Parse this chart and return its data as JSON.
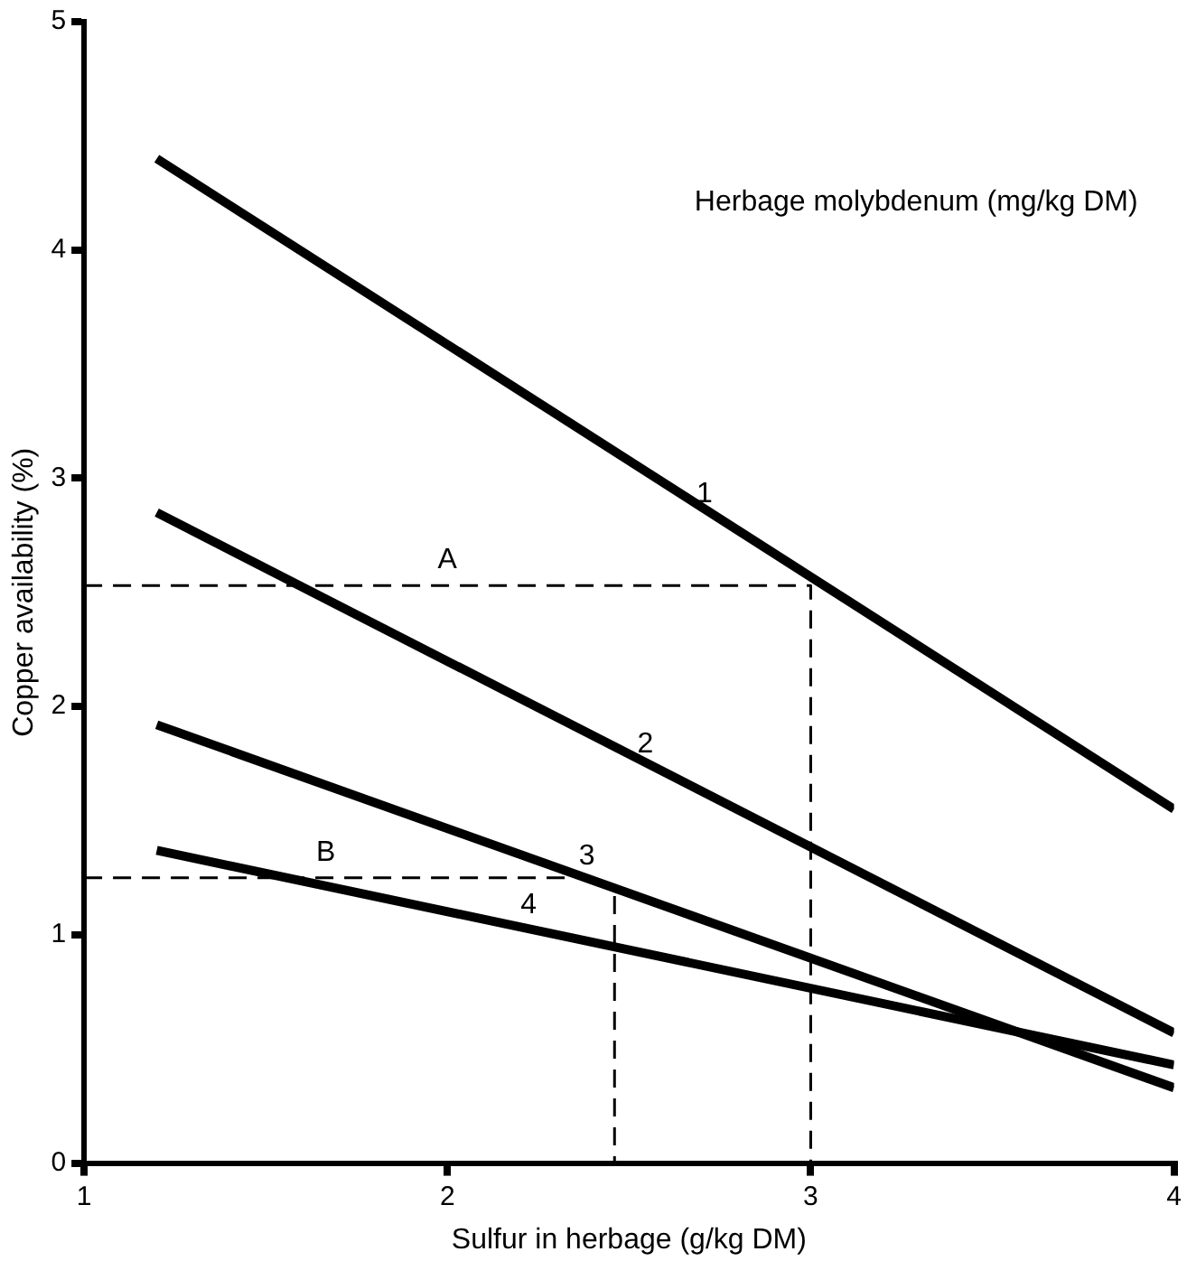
{
  "chart_data": {
    "type": "line",
    "xlabel": "Sulfur in herbage (g/kg DM)",
    "ylabel": "Copper availability (%)",
    "xlim": [
      1,
      4
    ],
    "ylim": [
      0,
      5
    ],
    "xticks": [
      1,
      2,
      3,
      4
    ],
    "yticks": [
      0,
      1,
      2,
      3,
      4,
      5
    ],
    "grid": false,
    "legend": false,
    "marker": "none",
    "line_style": "solid",
    "series": [
      {
        "name": "1",
        "color": "#000000",
        "x": [
          1.2,
          4
        ],
        "values": [
          4.4,
          1.55
        ]
      },
      {
        "name": "2",
        "color": "#000000",
        "x": [
          1.2,
          4
        ],
        "values": [
          2.85,
          0.57
        ]
      },
      {
        "name": "3",
        "color": "#000000",
        "x": [
          1.2,
          4
        ],
        "values": [
          1.92,
          0.33
        ]
      },
      {
        "name": "4",
        "color": "#000000",
        "x": [
          1.2,
          4
        ],
        "values": [
          1.37,
          0.43
        ]
      },
      {
        "name": "A",
        "color": "#000000",
        "line_style": "dashed",
        "x": [
          1,
          3,
          3
        ],
        "values": [
          2.53,
          2.53,
          0
        ]
      },
      {
        "name": "B",
        "color": "#000000",
        "line_style": "dashed",
        "x": [
          1,
          2.33
        ],
        "values": [
          1.25,
          1.25
        ]
      },
      {
        "color": "#000000",
        "line_style": "dashed",
        "x": [
          2.46,
          2.46
        ],
        "values": [
          1.17,
          0
        ]
      }
    ],
    "annotations": [
      "Herbage molybdenum (mg/kg DM)"
    ]
  }
}
